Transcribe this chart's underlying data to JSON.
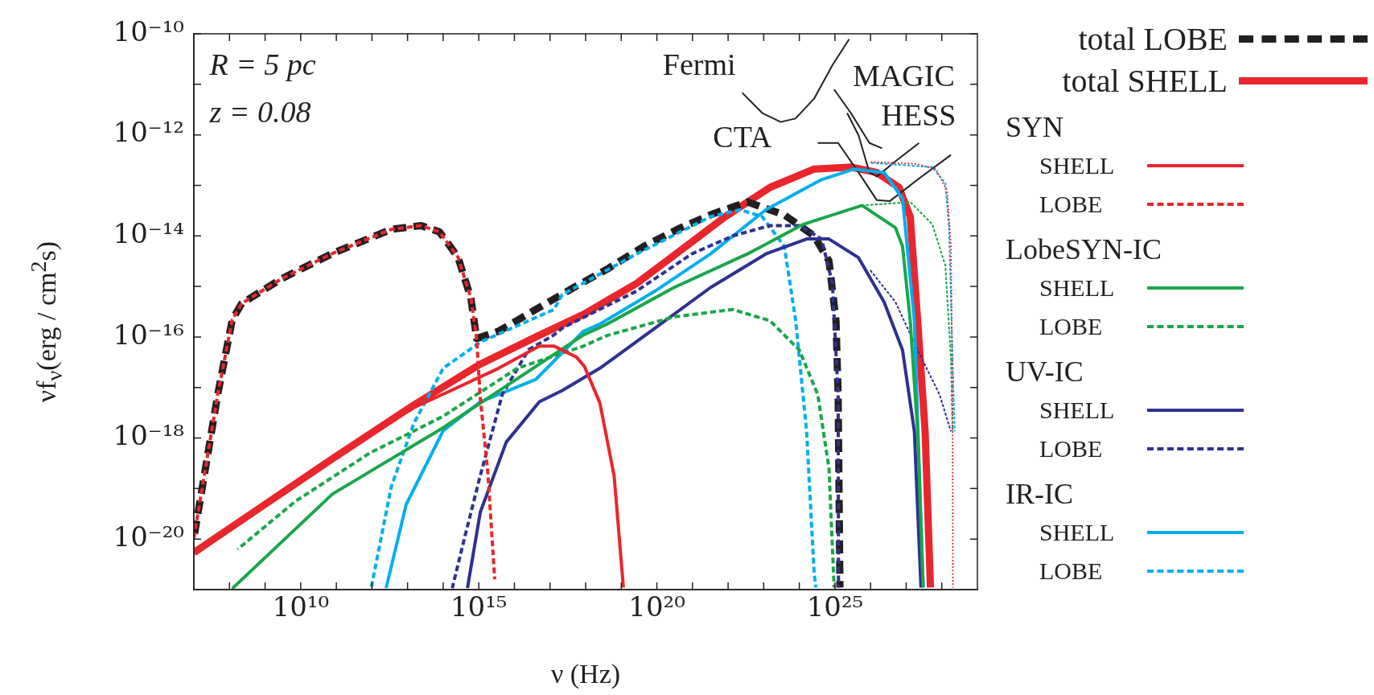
{
  "chart_data": {
    "type": "line",
    "xlabel": "ν (Hz)",
    "ylabel": "νf$_{ν}$(erg / cm$^{2}$s)",
    "log": "xy",
    "grid": false,
    "legend": "right",
    "marker": "none",
    "xlim": [
      10000000.0,
      1e+29
    ],
    "ylim": [
      1e-21,
      1e-10
    ],
    "xticks": [
      {
        "value": 100000000.0,
        "label": null
      },
      {
        "value": 1000000000.0,
        "label": null
      },
      {
        "value": 10000000000.0,
        "label": "10¹⁰"
      },
      {
        "value": 100000000000.0,
        "label": null
      },
      {
        "value": 1000000000000.0,
        "label": null
      },
      {
        "value": 10000000000000.0,
        "label": null
      },
      {
        "value": 100000000000000.0,
        "label": null
      },
      {
        "value": 1000000000000000.0,
        "label": "10¹⁵"
      },
      {
        "value": 1e+16,
        "label": null
      },
      {
        "value": 1e+17,
        "label": null
      },
      {
        "value": 1e+18,
        "label": null
      },
      {
        "value": 1e+19,
        "label": null
      },
      {
        "value": 1e+20,
        "label": "10²⁰"
      },
      {
        "value": 1e+21,
        "label": null
      },
      {
        "value": 1e+22,
        "label": null
      },
      {
        "value": 1e+23,
        "label": null
      },
      {
        "value": 1e+24,
        "label": null
      },
      {
        "value": 1e+25,
        "label": "10²⁵"
      },
      {
        "value": 1e+26,
        "label": null
      },
      {
        "value": 1e+27,
        "label": null
      },
      {
        "value": 1e+28,
        "label": null
      }
    ],
    "yticks": [
      {
        "value": 1e-20,
        "label": "10⁻²⁰"
      },
      {
        "value": 1e-19,
        "label": null
      },
      {
        "value": 1e-18,
        "label": "10⁻¹⁸"
      },
      {
        "value": 1e-17,
        "label": null
      },
      {
        "value": 1e-16,
        "label": "10⁻¹⁶"
      },
      {
        "value": 1e-15,
        "label": null
      },
      {
        "value": 1e-14,
        "label": "10⁻¹⁴"
      },
      {
        "value": 1e-13,
        "label": null
      },
      {
        "value": 1e-12,
        "label": "10⁻¹²"
      },
      {
        "value": 1e-11,
        "label": null
      },
      {
        "value": 1e-10,
        "label": "10⁻¹⁰"
      }
    ],
    "annotations": [
      "R = 5 pc",
      "z = 0.08",
      "Fermi",
      "MAGIC",
      "HESS",
      "CTA",
      "SYN",
      "LobeSYN-IC",
      "UV-IC",
      "IR-IC"
    ],
    "series": [
      {
        "name": "total LOBE",
        "color": "#231f20",
        "line_style": "dashed",
        "x": [
          10000000.0,
          47000000.0,
          120000000.0,
          220000000.0,
          2800000000.0,
          78000000000.0,
          3500000000000.0,
          24000000000000.0,
          79000000000000.0,
          260000000000000.0,
          600000000000000.0,
          870000000000000.0,
          3600000000000000.0,
          4e+16,
          4.6e+17,
          4e+18,
          4.3e+19,
          4.7e+20,
          4.1e+21,
          3.5e+22,
          3.8e+23,
          2.6e+24,
          6.8e+24,
          1.07e+25,
          1.23e+25,
          1.38e+25
        ],
        "values": [
          1.05e-20,
          7.4e-18,
          2.2e-16,
          4.6e-16,
          1.4e-15,
          4.5e-15,
          1.35e-14,
          1.6e-14,
          1.2e-14,
          3.8e-15,
          5.9e-16,
          9.3e-17,
          1.3e-16,
          3.5e-16,
          9.5e-16,
          2.2e-15,
          6.2e-15,
          1.45e-14,
          2.8e-14,
          4.7e-14,
          2.6e-14,
          1e-14,
          3.2e-15,
          2.1e-16,
          7.2e-18,
          1.1e-21
        ]
      },
      {
        "name": "total SHELL",
        "color": "#e8262c",
        "line_style": "solid",
        "x": [
          10000000.0,
          660000000.0,
          78000000000.0,
          15000000000000.0,
          1100000000000000.0,
          4e+16,
          8.7e+17,
          2.7e+19,
          4.7e+20,
          8.3e+21,
          1.5e+23,
          2.6e+24,
          2.8e+25,
          1.5e+26,
          6.3e+26,
          1.3e+27,
          2.1e+27,
          3.4e+27,
          4.8e+27
        ],
        "values": [
          5.4e-21,
          4e-20,
          3.9e-19,
          4.5e-18,
          2.9e-17,
          1e-16,
          2.8e-16,
          1.15e-15,
          5.2e-15,
          2.4e-14,
          9.1e-14,
          2.1e-13,
          2.3e-13,
          1.8e-13,
          9.1e-14,
          2.4e-14,
          2.1e-16,
          1.35e-18,
          1.1e-21
        ]
      },
      {
        "name": "SHELL",
        "color": "#e8262c",
        "line_style": "solid",
        "x": [
          10000000.0,
          660000000.0,
          78000000000.0,
          15000000000000.0,
          100000000000000.0,
          3600000000000000.0,
          5e+16,
          1.3e+17,
          5.5e+17,
          9.3e+17,
          2.5e+18,
          6.3e+18,
          1.15e+19
        ],
        "values": [
          5.4e-21,
          4e-20,
          3.9e-19,
          4e-18,
          7.4e-18,
          2.4e-17,
          6.6e-17,
          6.6e-17,
          4e-17,
          2.6e-17,
          5e-18,
          1.8e-19,
          1.1e-21
        ]
      },
      {
        "name": "LOBE",
        "color": "#e8262c",
        "line_style": "dashed",
        "x": [
          10000000.0,
          47000000.0,
          120000000.0,
          220000000.0,
          2800000000.0,
          78000000000.0,
          3500000000000.0,
          24000000000000.0,
          79000000000000.0,
          260000000000000.0,
          600000000000000.0,
          870000000000000.0,
          1100000000000000.0,
          1800000000000000.0,
          2800000000000000.0
        ],
        "values": [
          1.05e-20,
          7.4e-18,
          2.2e-16,
          4.6e-16,
          1.4e-15,
          4.5e-15,
          1.35e-14,
          1.6e-14,
          1.2e-14,
          3.8e-15,
          5.9e-16,
          9.3e-17,
          6.2e-18,
          2e-19,
          1.6e-21
        ]
      },
      {
        "name": "SHELL",
        "color": "#1aa64a",
        "line_style": "solid",
        "x": [
          120000000.0,
          78000000000.0,
          100000000000000.0,
          8.7e+17,
          4e+18,
          3e+20,
          3.5e+22,
          1.3e+24,
          5.8e+25,
          5e+26,
          7.9e+26,
          1.3e+27,
          2.1e+27,
          3e+27
        ],
        "values": [
          1.05e-21,
          7.8e-20,
          1.6e-18,
          1.1e-16,
          1.8e-16,
          9.5e-16,
          4.4e-15,
          1.7e-14,
          4e-14,
          1.45e-14,
          6.2e-15,
          2.1e-16,
          1.35e-18,
          1.1e-21
        ]
      },
      {
        "name": "LOBE",
        "color": "#1aa64a",
        "line_style": "dashed",
        "x": [
          170000000.0,
          7100000000.0,
          850000000000.0,
          100000000000000.0,
          1.2e+16,
          8.7e+17,
          4e+18,
          3e+20,
          1.35e+22,
          1.5e+23,
          1e+24,
          3.3e+24,
          6.8e+24,
          9.5e+24
        ],
        "values": [
          6.3e-21,
          5.6e-20,
          5e-19,
          2.7e-18,
          2.4e-17,
          6.6e-17,
          1.07e-16,
          2.5e-16,
          3.5e-16,
          2.1e-16,
          5.5e-17,
          7.2e-18,
          2.5e-19,
          1.1e-21
        ]
      },
      {
        "name": "SHELL",
        "color": "#2e3192",
        "line_style": "solid",
        "x": [
          480000000000000.0,
          1100000000000000.0,
          5900000000000000.0,
          5e+16,
          2.2e+17,
          2.5e+18,
          8.9e+19,
          3.2e+21,
          1.15e+23,
          1.6e+24,
          6.8e+24,
          4.6e+25,
          2.4e+26,
          7.9e+26,
          1.7e+27,
          2.6e+27
        ],
        "values": [
          1.07e-21,
          3.4e-20,
          8.3e-19,
          5.2e-18,
          8.7e-18,
          2.4e-17,
          1.5e-16,
          9.5e-16,
          4.4e-15,
          8.7e-15,
          8.7e-15,
          3.7e-15,
          4.9e-16,
          5.5e-17,
          1.35e-18,
          1.1e-21
        ]
      },
      {
        "name": "LOBE",
        "color": "#2e3192",
        "line_style": "dashed",
        "x": [
          180000000000000.0,
          420000000000000.0,
          1100000000000000.0,
          4600000000000000.0,
          2.5e+16,
          1.3e+17,
          2.2e+17,
          2.7e+19,
          9.5e+20,
          1.35e+22,
          1.5e+23,
          1e+24,
          4.2e+24,
          8.5e+24,
          1.23e+25,
          1.26e+25
        ],
        "values": [
          1.07e-21,
          1.23e-20,
          1.8e-19,
          7.4e-18,
          5.6e-17,
          1.1e-16,
          1.5e-16,
          8.1e-16,
          4.4e-15,
          1e-14,
          1.6e-14,
          1.6e-14,
          8.7e-15,
          1.15e-15,
          7.2e-18,
          1.1e-21
        ]
      },
      {
        "name": "SHELL",
        "color": "#00aeef",
        "line_style": "solid",
        "x": [
          2500000000000.0,
          9100000000000.0,
          100000000000000.0,
          1100000000000000.0,
          4e+16,
          8.7e+17,
          2.5e+18,
          8.9e+19,
          3.2e+21,
          1.15e+23,
          4.2e+24,
          3.5e+25,
          2.4e+26,
          7.9e+26,
          1.7e+27,
          3e+27
        ],
        "values": [
          1.07e-21,
          4.8e-20,
          1.4e-18,
          5.2e-18,
          1.45e-17,
          1.3e-16,
          1.8e-16,
          8.1e-16,
          4.4e-15,
          3.3e-14,
          1.3e-13,
          2.1e-13,
          1.8e-13,
          5.5e-14,
          2.1e-16,
          1.1e-21
        ]
      },
      {
        "name": "LOBE",
        "color": "#00aeef",
        "line_style": "dashed",
        "x": [
          950000000000.0,
          3500000000000.0,
          15000000000000.0,
          100000000000000.0,
          1100000000000000.0,
          1.3e+17,
          2.2e+17,
          2.7e+19,
          3.2e+21,
          2.2e+22,
          9.1e+22,
          3.8e+23,
          7.9e+23,
          1.6e+24,
          2.6e+24,
          2.9e+24
        ],
        "values": [
          1.07e-21,
          1.1e-19,
          1.95e-18,
          2.4e-17,
          7.9e-17,
          3.5e-16,
          6.9e-16,
          4.4e-15,
          2.4e-14,
          3.3e-14,
          2.4e-14,
          6.2e-15,
          2.1e-16,
          1.35e-18,
          2.2e-21,
          1.1e-21
        ]
      },
      {
        "color": "#e8262c",
        "line_style": "dotted",
        "x": [
          9.3e+25,
          1.7e+27,
          6.9e+27,
          1.4e+28,
          1.8e+28,
          2e+28,
          2.05e+28
        ],
        "values": [
          2.9e-13,
          2.7e-13,
          2.1e-13,
          7.8e-14,
          6.2e-15,
          7.2e-18,
          1.1e-21
        ]
      },
      {
        "color": "#00aeef",
        "line_style": "dashed",
        "x": [
          9.3e+25,
          5.4e+27,
          1.26e+28,
          1.6e+28,
          2e+28,
          2.3e+28
        ],
        "values": [
          2.8e-13,
          2.3e-13,
          1.1e-13,
          1.45e-14,
          4e-17,
          1.35e-18
        ]
      },
      {
        "color": "#1aa64a",
        "line_style": "dashed",
        "x": [
          5.8e+25,
          1.3e+27,
          5.4e+27,
          1.26e+28,
          1.8e+28,
          2e+28
        ],
        "values": [
          4e-14,
          4.7e-14,
          1.7e-14,
          2.6e-15,
          4e-17,
          1.35e-18
        ]
      },
      {
        "color": "#2e3192",
        "line_style": "dashed",
        "x": [
          9.3e+25,
          5e+26,
          2.1e+27,
          8.7e+27,
          1.8e+28
        ],
        "values": [
          2.2e-15,
          4.9e-16,
          5.5e-17,
          7.2e-18,
          1.35e-18
        ]
      },
      {
        "color": "#231f20",
        "line_style": "solid",
        "x": [
          2.5e+22,
          9.1e+22,
          3e+23,
          7.8e+23,
          2.6e+24,
          8.5e+24,
          2.5e+25
        ],
        "values": [
          6.8e-12,
          2.7e-12,
          1.8e-12,
          2.1e-12,
          5.2e-12,
          2.4e-11,
          7.8e-11
        ]
      },
      {
        "color": "#231f20",
        "line_style": "solid",
        "x": [
          9.5e+24,
          2.8e+25,
          9.3e+25,
          2.1e+26
        ],
        "values": [
          7.9e-12,
          2.7e-12,
          6.9e-13,
          5.4e-13
        ]
      },
      {
        "color": "#231f20",
        "line_style": "solid",
        "x": [
          2.2e+25,
          4.6e+25,
          9.3e+25,
          1.5e+26,
          5e+26,
          2.3e+27
        ],
        "values": [
          2.7e-12,
          9.8e-13,
          1.8e-13,
          1.5e-13,
          3e-13,
          6.9e-13
        ]
      },
      {
        "color": "#231f20",
        "line_style": "solid",
        "x": [
          3.3e+24,
          1.23e+25,
          4.6e+25,
          1.5e+26,
          3.5e+26,
          2.1e+27,
          1.8e+28
        ],
        "values": [
          6.9e-13,
          6.9e-13,
          1.8e-13,
          5.1e-14,
          4.9e-14,
          1.3e-13,
          4e-13
        ]
      }
    ]
  }
}
